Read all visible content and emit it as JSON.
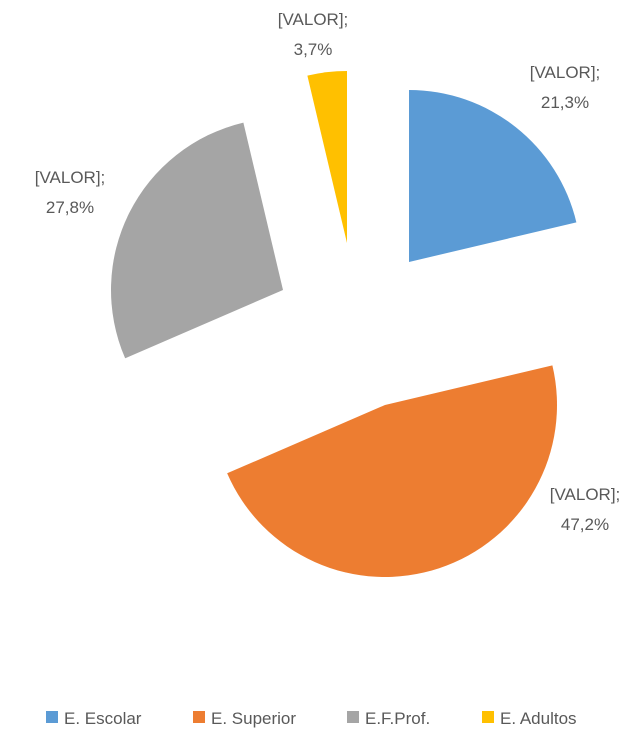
{
  "chart_data": {
    "type": "pie",
    "categories": [
      "E. Escolar",
      "E. Superior",
      "E.F.Prof.",
      "E. Adultos"
    ],
    "values": [
      21.3,
      47.2,
      27.8,
      3.7
    ],
    "value_labels": [
      "[VALOR]; 21,3%",
      "[VALOR]; 47,2%",
      "[VALOR]; 27,8%",
      "[VALOR]; 3,7%"
    ],
    "colors": [
      "#5b9bd5",
      "#ed7d31",
      "#a5a5a5",
      "#ffc000"
    ],
    "legend": "bottom"
  }
}
